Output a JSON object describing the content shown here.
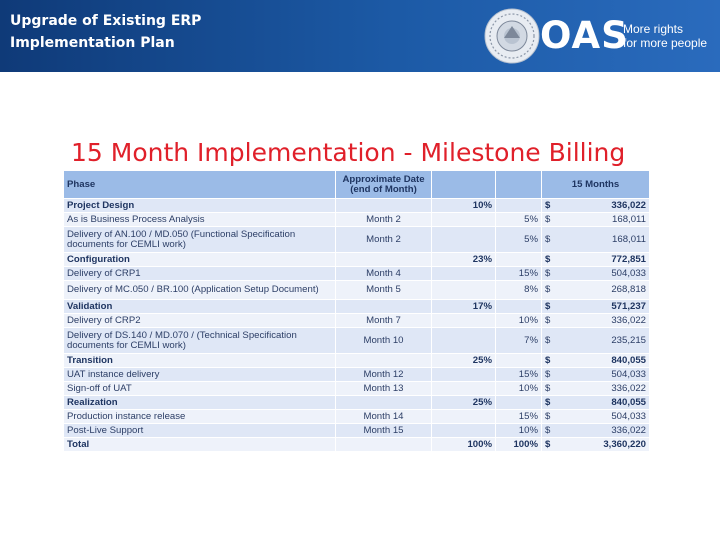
{
  "header": {
    "title_line1": "Upgrade of Existing ERP",
    "title_line2": "Implementation Plan",
    "brand": "OAS",
    "tagline_line1": "More rights",
    "tagline_line2": "for more people"
  },
  "slide_title": "15 Month Implementation - Milestone Billing",
  "table": {
    "headers": {
      "phase": "Phase",
      "date_line1": "Approximate Date",
      "date_line2": "(end of Month)",
      "total": "15 Months"
    },
    "rows": [
      {
        "type": "phase",
        "label": "Project Design",
        "date": "",
        "pct_phase": "10%",
        "pct_item": "",
        "cur": "$",
        "amount": "336,022"
      },
      {
        "type": "item",
        "label": "As is Business Process Analysis",
        "date": "Month 2",
        "pct_phase": "",
        "pct_item": "5%",
        "cur": "$",
        "amount": "168,011"
      },
      {
        "type": "item",
        "label": "Delivery of AN.100 / MD.050 (Functional Specification documents for CEMLI work)",
        "date": "Month 2",
        "pct_phase": "",
        "pct_item": "5%",
        "cur": "$",
        "amount": "168,011"
      },
      {
        "type": "phase",
        "label": "Configuration",
        "date": "",
        "pct_phase": "23%",
        "pct_item": "",
        "cur": "$",
        "amount": "772,851"
      },
      {
        "type": "item",
        "label": "Delivery of CRP1",
        "date": "Month 4",
        "pct_phase": "",
        "pct_item": "15%",
        "cur": "$",
        "amount": "504,033"
      },
      {
        "type": "item",
        "label": "Delivery of MC.050 / BR.100 (Application Setup Document)",
        "date": "Month 5",
        "pct_phase": "",
        "pct_item": "8%",
        "cur": "$",
        "amount": "268,818"
      },
      {
        "type": "phase",
        "label": "Validation",
        "date": "",
        "pct_phase": "17%",
        "pct_item": "",
        "cur": "$",
        "amount": "571,237"
      },
      {
        "type": "item",
        "label": "Delivery of CRP2",
        "date": "Month 7",
        "pct_phase": "",
        "pct_item": "10%",
        "cur": "$",
        "amount": "336,022"
      },
      {
        "type": "item",
        "label": "Delivery of DS.140 / MD.070 /  (Technical Specification documents for CEMLI work)",
        "date": "Month 10",
        "pct_phase": "",
        "pct_item": "7%",
        "cur": "$",
        "amount": "235,215"
      },
      {
        "type": "phase",
        "label": "Transition",
        "date": "",
        "pct_phase": "25%",
        "pct_item": "",
        "cur": "$",
        "amount": "840,055"
      },
      {
        "type": "item",
        "label": "UAT instance delivery",
        "date": "Month 12",
        "pct_phase": "",
        "pct_item": "15%",
        "cur": "$",
        "amount": "504,033"
      },
      {
        "type": "item",
        "label": "Sign-off of UAT",
        "date": "Month 13",
        "pct_phase": "",
        "pct_item": "10%",
        "cur": "$",
        "amount": "336,022"
      },
      {
        "type": "phase",
        "label": "Realization",
        "date": "",
        "pct_phase": "25%",
        "pct_item": "",
        "cur": "$",
        "amount": "840,055"
      },
      {
        "type": "item",
        "label": "Production instance release",
        "date": "Month 14",
        "pct_phase": "",
        "pct_item": "15%",
        "cur": "$",
        "amount": "504,033"
      },
      {
        "type": "item",
        "label": "Post-Live Support",
        "date": "Month 15",
        "pct_phase": "",
        "pct_item": "10%",
        "cur": "$",
        "amount": "336,022"
      },
      {
        "type": "phase",
        "label": "Total",
        "date": "",
        "pct_phase": "100%",
        "pct_item": "100%",
        "cur": "$",
        "amount": "3,360,220"
      }
    ]
  },
  "colors": {
    "header_bg": "#1c5aa6",
    "title_red": "#e0202a",
    "table_header": "#9bbbe7",
    "row_dark": "#dfe7f6",
    "row_light": "#eef2fa"
  }
}
